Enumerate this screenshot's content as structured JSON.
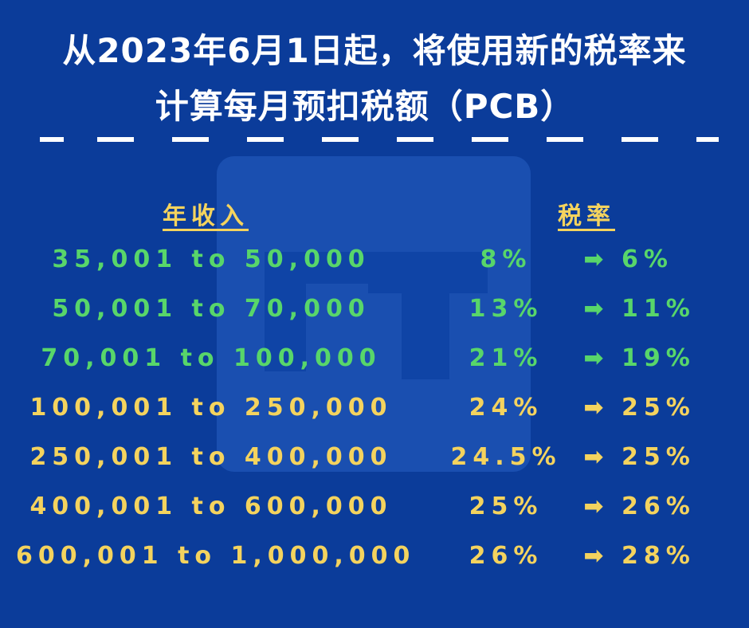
{
  "title": {
    "line1": "从2023年6月1日起，将使用新的税率来",
    "line2": "计算每月预扣税额（PCB）"
  },
  "headers": {
    "income": "年收入",
    "rate": "税率"
  },
  "arrow_glyph": "➡",
  "colors": {
    "background": "#0b3c9a",
    "title": "#ffffff",
    "decrease_rows": "#58d66a",
    "increase_rows": "#f4d35e"
  },
  "rows": [
    {
      "income": "35,001 to 50,000",
      "old_rate": "8%",
      "new_rate": "6%",
      "color": "green"
    },
    {
      "income": "50,001 to 70,000",
      "old_rate": "13%",
      "new_rate": "11%",
      "color": "green"
    },
    {
      "income": "70,001 to 100,000",
      "old_rate": "21%",
      "new_rate": "19%",
      "color": "green"
    },
    {
      "income": "100,001 to 250,000",
      "old_rate": "24%",
      "new_rate": "25%",
      "color": "yellow"
    },
    {
      "income": "250,001 to 400,000",
      "old_rate": "24.5%",
      "new_rate": "25%",
      "color": "yellow"
    },
    {
      "income": "400,001 to 600,000",
      "old_rate": "25%",
      "new_rate": "26%",
      "color": "yellow"
    },
    {
      "income": "600,001 to 1,000,000",
      "old_rate": "26%",
      "new_rate": "28%",
      "color": "yellow"
    }
  ]
}
